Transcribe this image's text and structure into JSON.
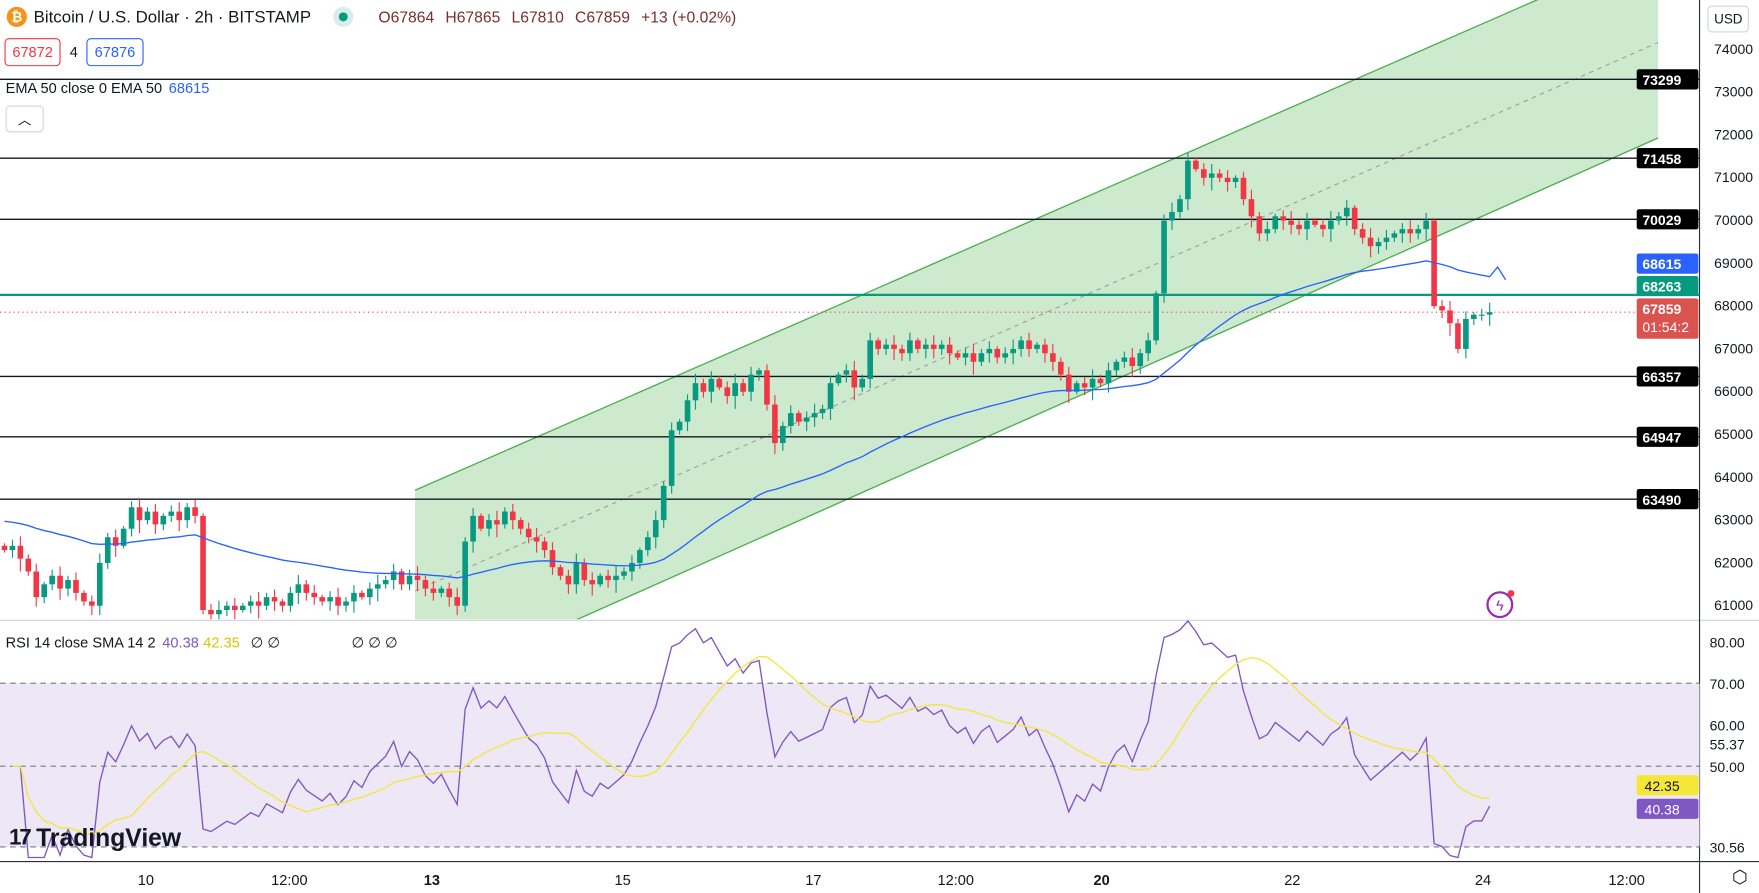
{
  "header": {
    "symbol": "Bitcoin / U.S. Dollar · 2h · BITSTAMP",
    "icon": "bitcoin-icon",
    "open": "O67864",
    "high": "H67865",
    "low": "L67810",
    "close": "C67859",
    "change": "+13 (+0.02%)"
  },
  "bidask": {
    "sell": "67872",
    "spread": "4",
    "buy": "67876"
  },
  "ema": {
    "label": "EMA 50 close 0 EMA 50",
    "value": "68615"
  },
  "currency": "USD",
  "rsi": {
    "label": "RSI 14 close SMA 14 2",
    "rsi_value": "40.38",
    "sma_value": "42.35",
    "extras": "∅ ∅",
    "extras2": "∅ ∅ ∅"
  },
  "logo": "TradingView",
  "colors": {
    "up": "#089981",
    "down": "#f23645",
    "ema": "#2962ff",
    "rsi": "#7e57c2",
    "rsi_sma": "#f5e63a",
    "channel": "#4caf50",
    "support": "#089981"
  },
  "chart_data": {
    "type": "candlestick",
    "interval": "2h",
    "price_ticks": [
      74000,
      73000,
      72000,
      71000,
      70000,
      69000,
      68000,
      67000,
      66000,
      65000,
      64000,
      63000,
      62000,
      61000
    ],
    "time_ticks": [
      {
        "label": "10",
        "bold": false
      },
      {
        "label": "12:00",
        "bold": false
      },
      {
        "label": "13",
        "bold": true
      },
      {
        "label": "15",
        "bold": false
      },
      {
        "label": "17",
        "bold": false
      },
      {
        "label": "12:00",
        "bold": false
      },
      {
        "label": "20",
        "bold": true
      },
      {
        "label": "22",
        "bold": false
      },
      {
        "label": "24",
        "bold": false
      },
      {
        "label": "12:00",
        "bold": false
      }
    ],
    "horizontal_levels": [
      73299,
      71458,
      70029,
      66357,
      64947,
      63490
    ],
    "support_level": 68263,
    "last_price": {
      "value": "67859",
      "countdown": "01:54:2"
    },
    "ema_last": "68615",
    "closes": [
      62300,
      62400,
      62100,
      61800,
      61200,
      61500,
      61700,
      61400,
      61600,
      61300,
      61100,
      61000,
      62000,
      62600,
      62400,
      62800,
      63300,
      63000,
      63200,
      62900,
      63100,
      63200,
      63000,
      63300,
      63100,
      60900,
      60800,
      60900,
      61000,
      60900,
      61000,
      61100,
      61000,
      61200,
      61100,
      61000,
      61300,
      61500,
      61300,
      61200,
      61100,
      61200,
      61000,
      61100,
      61300,
      61200,
      61400,
      61500,
      61600,
      61800,
      61500,
      61700,
      61600,
      61400,
      61300,
      61400,
      61200,
      61000,
      62500,
      63100,
      62800,
      63000,
      62900,
      63200,
      63000,
      62800,
      62600,
      62500,
      62300,
      61900,
      61700,
      61500,
      62000,
      61600,
      61500,
      61700,
      61600,
      61700,
      61800,
      62000,
      62300,
      62600,
      63000,
      63800,
      65100,
      65300,
      65800,
      66200,
      66000,
      66300,
      66100,
      65900,
      66200,
      66000,
      66400,
      66500,
      65700,
      64800,
      65200,
      65500,
      65300,
      65400,
      65500,
      65600,
      66200,
      66400,
      66500,
      66100,
      66300,
      67200,
      67000,
      67100,
      67000,
      66900,
      67200,
      67000,
      67100,
      67000,
      67100,
      66900,
      66800,
      66900,
      66700,
      66900,
      67000,
      66800,
      66900,
      67000,
      67200,
      67000,
      67100,
      66900,
      66700,
      66400,
      66000,
      66200,
      66100,
      66300,
      66200,
      66500,
      66700,
      66800,
      66600,
      66900,
      67200,
      68300,
      70000,
      70200,
      70500,
      71400,
      71200,
      71000,
      71100,
      71000,
      70900,
      71000,
      70500,
      70100,
      69700,
      69800,
      70100,
      70000,
      69900,
      69800,
      70000,
      69900,
      69800,
      70000,
      70100,
      70300,
      69800,
      69600,
      69400,
      69500,
      69600,
      69700,
      69800,
      69700,
      69800,
      70000,
      68000,
      67900,
      67600,
      67000,
      67700,
      67800,
      67800,
      67859
    ],
    "rsi_ticks": [
      "80.00",
      "70.00",
      "60.00",
      "55.37",
      "50.00",
      "42.35",
      "40.38",
      "30.56"
    ],
    "rsi_levels": [
      70,
      50,
      30
    ]
  }
}
